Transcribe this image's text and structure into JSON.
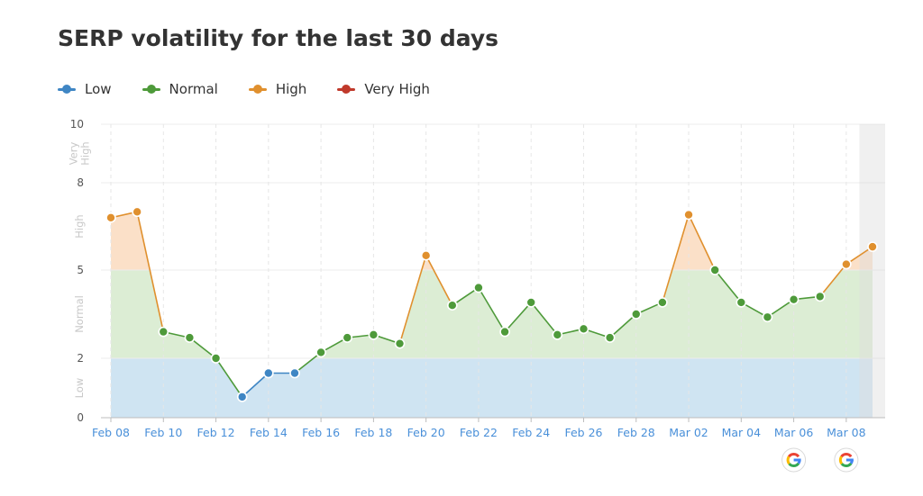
{
  "chart_data": {
    "type": "line",
    "title": "SERP volatility for the last 30 days",
    "legend": [
      {
        "name": "Low",
        "color": "#3f86c4"
      },
      {
        "name": "Normal",
        "color": "#4e9a3a"
      },
      {
        "name": "High",
        "color": "#e0902e"
      },
      {
        "name": "Very High",
        "color": "#c0392b"
      }
    ],
    "bands": [
      {
        "label": "Low",
        "from": 0,
        "to": 2,
        "color": "#cfe4f2"
      },
      {
        "label": "Normal",
        "from": 2,
        "to": 5,
        "color": "#dcedd4"
      },
      {
        "label": "High",
        "from": 5,
        "to": 8,
        "color": "#fbe0c8"
      },
      {
        "label": "Very High",
        "from": 8,
        "to": 10,
        "color": "#f6d3cf"
      }
    ],
    "yticks": [
      0,
      2,
      5,
      8,
      10
    ],
    "ylim": [
      0,
      10
    ],
    "xlabels": [
      "Feb 08",
      "Feb 10",
      "Feb 12",
      "Feb 14",
      "Feb 16",
      "Feb 18",
      "Feb 20",
      "Feb 22",
      "Feb 24",
      "Feb 26",
      "Feb 28",
      "Mar 02",
      "Mar 04",
      "Mar 06",
      "Mar 08"
    ],
    "x": [
      "Feb 08",
      "Feb 09",
      "Feb 10",
      "Feb 11",
      "Feb 12",
      "Feb 13",
      "Feb 14",
      "Feb 15",
      "Feb 16",
      "Feb 17",
      "Feb 18",
      "Feb 19",
      "Feb 20",
      "Feb 21",
      "Feb 22",
      "Feb 23",
      "Feb 24",
      "Feb 25",
      "Feb 26",
      "Feb 27",
      "Feb 28",
      "Mar 01",
      "Mar 02",
      "Mar 03",
      "Mar 04",
      "Mar 05",
      "Mar 06",
      "Mar 07",
      "Mar 08",
      "Mar 09"
    ],
    "values": [
      6.8,
      7.0,
      2.9,
      2.7,
      2.0,
      0.7,
      1.5,
      1.5,
      2.2,
      2.7,
      2.8,
      2.5,
      5.5,
      3.8,
      4.4,
      2.9,
      3.9,
      2.8,
      3.0,
      2.7,
      3.5,
      3.9,
      6.9,
      5.0,
      3.9,
      3.4,
      4.0,
      4.1,
      5.2,
      5.8
    ],
    "google_update_markers": [
      "Mar 06",
      "Mar 08"
    ],
    "highlighted_day": "Mar 09"
  }
}
